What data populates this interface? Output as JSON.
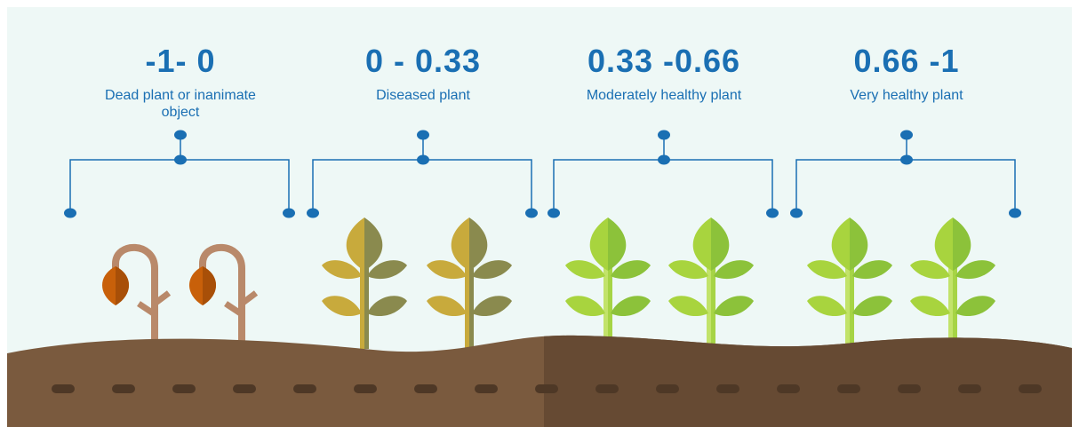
{
  "sections": [
    {
      "range": "-1- 0",
      "label": "Dead plant or inanimate object"
    },
    {
      "range": "0 - 0.33",
      "label": "Diseased plant"
    },
    {
      "range": "0.33 -0.66",
      "label": "Moderately healthy plant"
    },
    {
      "range": "0.66 -1",
      "label": "Very healthy plant"
    }
  ]
}
